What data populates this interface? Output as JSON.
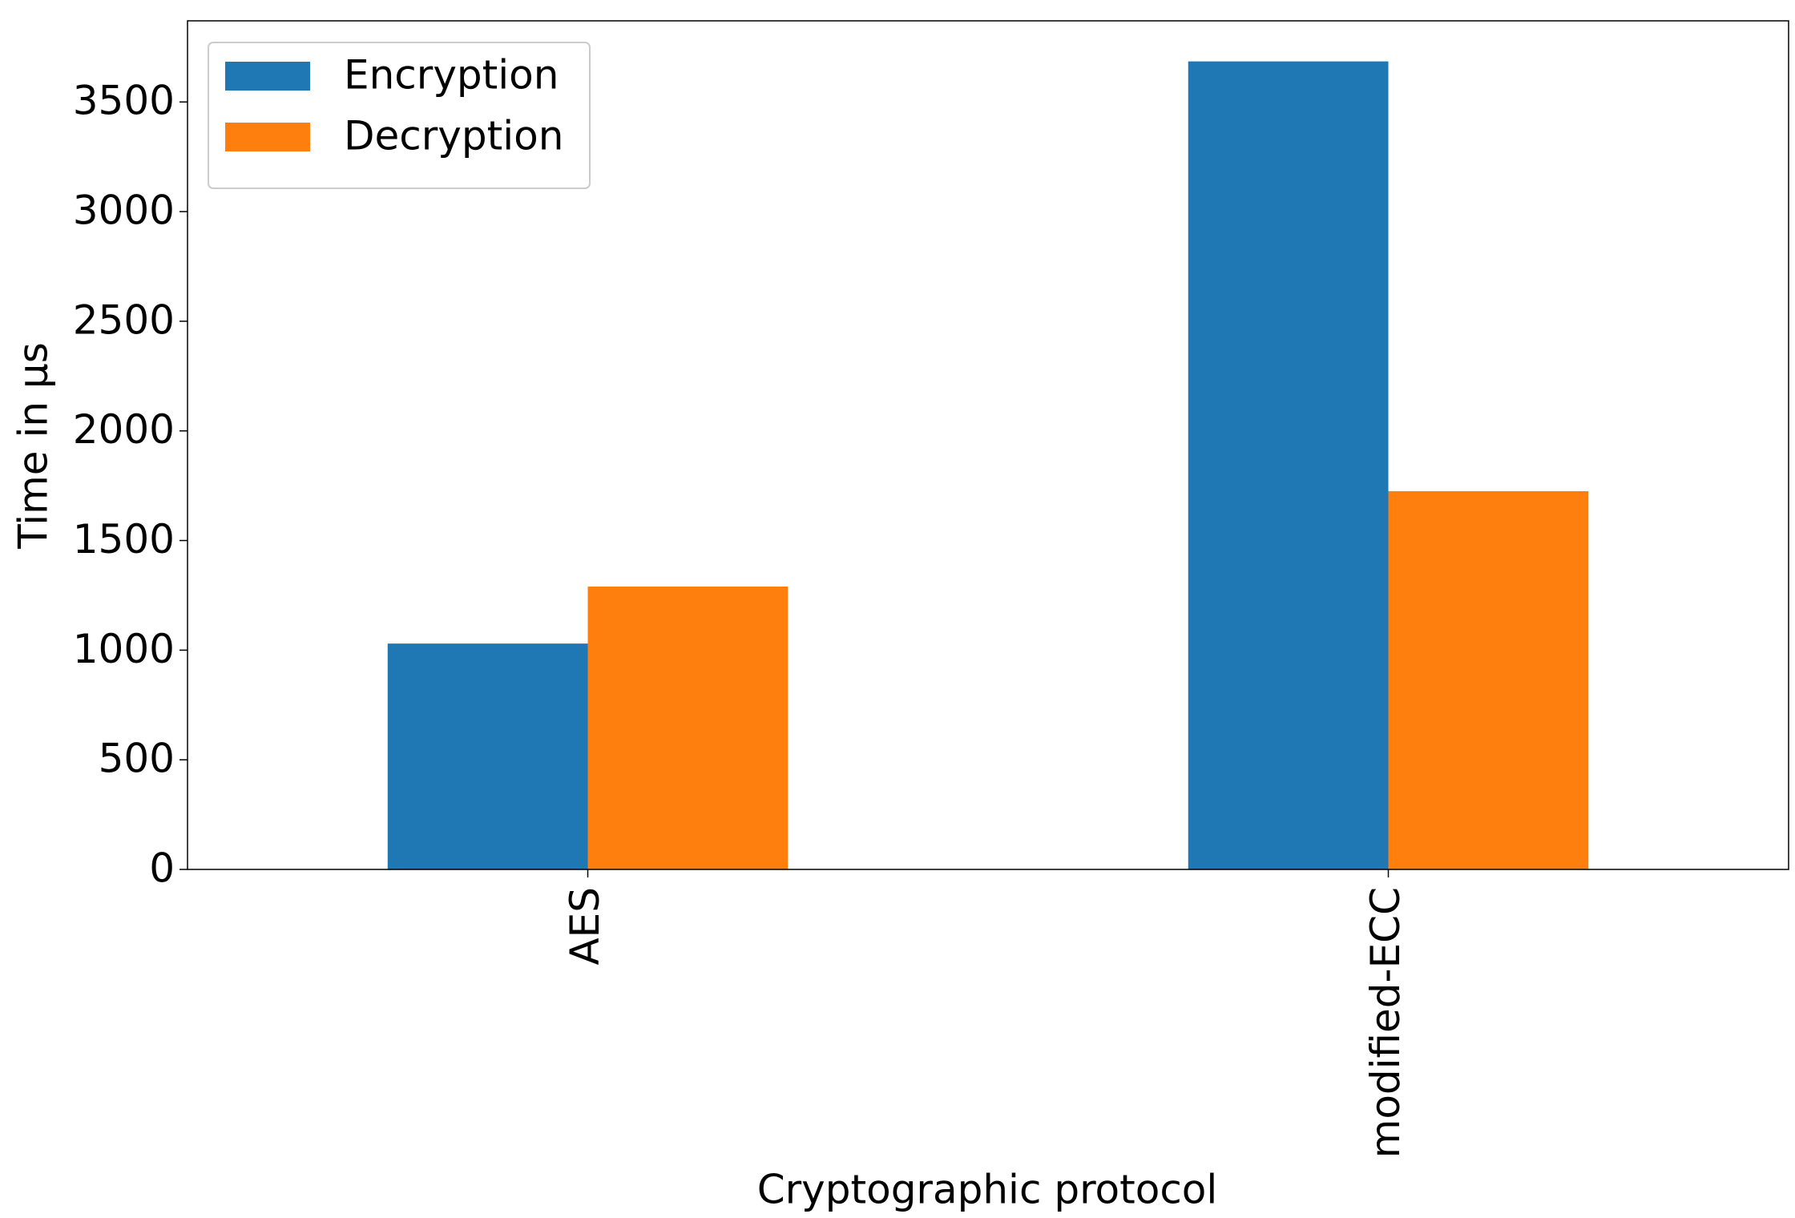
{
  "chart_data": {
    "type": "bar",
    "x_label": "Cryptographic protocol",
    "y_label": "Time in µs",
    "categories": [
      "AES",
      "modified-ECC"
    ],
    "series": [
      {
        "name": "Encryption",
        "color": "#1f77b4",
        "values": [
          1030,
          3685
        ]
      },
      {
        "name": "Decryption",
        "color": "#ff7f0e",
        "values": [
          1290,
          1725
        ]
      }
    ],
    "ylim": [
      0,
      3870
    ],
    "yticks": [
      0,
      500,
      1000,
      1500,
      2000,
      2500,
      3000,
      3500
    ],
    "legend": "upper-left",
    "grid": false
  }
}
